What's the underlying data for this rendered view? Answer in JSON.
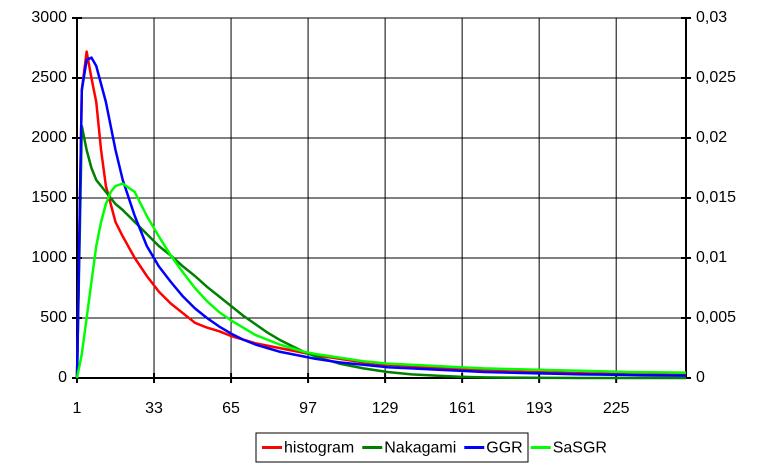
{
  "chart_data": {
    "type": "line",
    "x": [
      1,
      3,
      5,
      7,
      9,
      11,
      13,
      15,
      17,
      20,
      25,
      30,
      35,
      40,
      45,
      50,
      55,
      60,
      65,
      70,
      75,
      80,
      85,
      90,
      95,
      100,
      110,
      120,
      130,
      140,
      150,
      160,
      170,
      180,
      190,
      200,
      210,
      220,
      230,
      240,
      254
    ],
    "xlim": [
      1,
      254
    ],
    "xticks": [
      1,
      33,
      65,
      97,
      129,
      161,
      193,
      225
    ],
    "ylim": [
      0,
      3000
    ],
    "yticks": [
      0,
      500,
      1000,
      1500,
      2000,
      2500,
      3000
    ],
    "y2lim": [
      0,
      0.03
    ],
    "y2ticks": [
      0,
      {
        "value": 0.005,
        "label": "0,005"
      },
      {
        "value": 0.01,
        "label": "0,01"
      },
      {
        "value": 0.015,
        "label": "0,015"
      },
      {
        "value": 0.02,
        "label": "0,02"
      },
      {
        "value": 0.025,
        "label": "0,025"
      },
      {
        "value": 0.03,
        "label": "0,03"
      }
    ],
    "grid": true,
    "legend": "bottom",
    "series": [
      {
        "name": "histogram",
        "color": "#ff0000",
        "values": [
          0,
          2400,
          2720,
          2500,
          2300,
          1900,
          1600,
          1450,
          1300,
          1180,
          1000,
          850,
          720,
          620,
          540,
          460,
          420,
          390,
          350,
          320,
          290,
          270,
          250,
          230,
          210,
          190,
          160,
          130,
          110,
          100,
          85,
          75,
          65,
          55,
          50,
          45,
          40,
          35,
          30,
          28,
          25
        ]
      },
      {
        "name": "Nakagami",
        "color": "#008000",
        "axis": "y2",
        "values": [
          0,
          0.021,
          0.019,
          0.0175,
          0.0165,
          0.016,
          0.0155,
          0.015,
          0.0145,
          0.014,
          0.013,
          0.012,
          0.011,
          0.0102,
          0.0093,
          0.0085,
          0.0076,
          0.0068,
          0.006,
          0.0052,
          0.0045,
          0.0038,
          0.0032,
          0.0027,
          0.0022,
          0.0018,
          0.0012,
          0.0008,
          0.0005,
          0.0003,
          0.0002,
          0.0001,
          5e-05,
          3e-05,
          2e-05,
          1e-05,
          0,
          0,
          0,
          0,
          0
        ]
      },
      {
        "name": "GGR",
        "color": "#0000ff",
        "axis": "y2",
        "values": [
          0,
          0.024,
          0.0265,
          0.0267,
          0.026,
          0.0245,
          0.023,
          0.021,
          0.019,
          0.0165,
          0.0135,
          0.011,
          0.0093,
          0.008,
          0.0068,
          0.0058,
          0.005,
          0.0043,
          0.0037,
          0.0032,
          0.0028,
          0.0025,
          0.0022,
          0.002,
          0.0018,
          0.0016,
          0.0013,
          0.0011,
          0.0009,
          0.0008,
          0.0007,
          0.0006,
          0.0005,
          0.00045,
          0.0004,
          0.00035,
          0.0003,
          0.00028,
          0.00025,
          0.00022,
          0.0002
        ]
      },
      {
        "name": "SaSGR",
        "color": "#00ff00",
        "axis": "y2",
        "values": [
          0,
          0.002,
          0.005,
          0.008,
          0.011,
          0.013,
          0.0145,
          0.0155,
          0.016,
          0.0162,
          0.0155,
          0.0135,
          0.0118,
          0.0102,
          0.0088,
          0.0075,
          0.0064,
          0.0055,
          0.0048,
          0.0042,
          0.0036,
          0.0032,
          0.0028,
          0.0025,
          0.0022,
          0.002,
          0.0017,
          0.0014,
          0.0012,
          0.0011,
          0.001,
          0.0009,
          0.0008,
          0.00075,
          0.0007,
          0.00065,
          0.0006,
          0.00055,
          0.0005,
          0.00048,
          0.00045
        ]
      }
    ]
  }
}
